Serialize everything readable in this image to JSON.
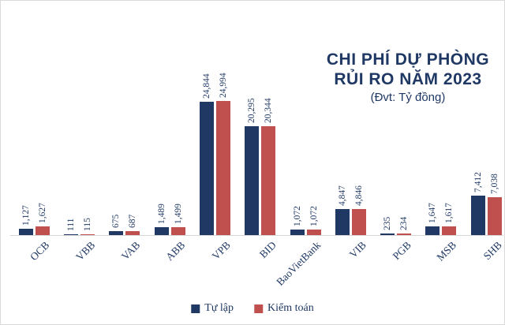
{
  "title": {
    "line1": "CHI PHÍ DỰ PHÒNG",
    "line2": "RỦI RO NĂM 2023",
    "subtitle": "(Đvt: Tỷ đồng)"
  },
  "colors": {
    "series1": "#1f3864",
    "series2": "#c0504d",
    "label_text": "#1f3864",
    "axis_line": "#d6d6d6"
  },
  "chart_data": {
    "type": "bar",
    "title": "CHI PHÍ DỰ PHÒNG RỦI RO NĂM 2023",
    "unit_label": "(Đvt: Tỷ đồng)",
    "categories": [
      "OCB",
      "VBB",
      "VAB",
      "ABB",
      "VPB",
      "BID",
      "BaoVietBank",
      "VIB",
      "PGB",
      "MSB",
      "SHB"
    ],
    "series": [
      {
        "name": "Tự lập",
        "color": "#1f3864",
        "values": [
          1127,
          111,
          675,
          1489,
          24844,
          20295,
          1072,
          4847,
          235,
          1647,
          7412
        ]
      },
      {
        "name": "Kiểm toán",
        "color": "#c0504d",
        "values": [
          1627,
          115,
          687,
          1499,
          24994,
          20344,
          1072,
          4846,
          234,
          1617,
          7038
        ]
      }
    ],
    "ylim": [
      0,
      25000
    ],
    "grid": false,
    "y_axis_visible": false,
    "legend_position": "bottom",
    "value_labels": "rotated-vertical, thousands-comma"
  }
}
